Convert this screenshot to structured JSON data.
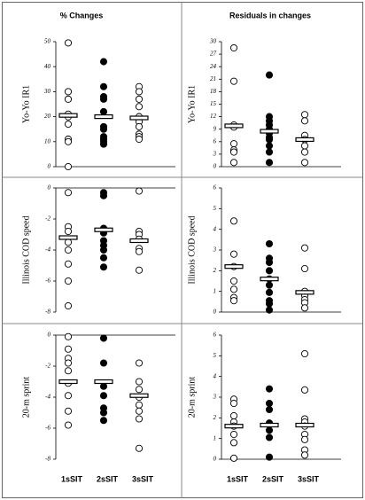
{
  "column_titles": [
    "% Changes",
    "Residuals in changes"
  ],
  "categories": [
    "1sSIT",
    "2sSIT",
    "3sSIT"
  ],
  "chart_data": [
    {
      "type": "strip",
      "ylabel": "Yo-Yo IR1",
      "ylim": [
        0,
        50
      ],
      "yticks": [
        0,
        10,
        20,
        30,
        40,
        50
      ],
      "colors": [
        "#ffffff",
        "#000000",
        "#ffffff"
      ],
      "groups": [
        {
          "values": [
            49.5,
            30,
            27,
            21,
            20,
            17,
            11,
            10,
            0
          ],
          "mean": 20.5
        },
        {
          "values": [
            42,
            32,
            28,
            27,
            22,
            16,
            15,
            12,
            11,
            10,
            9
          ],
          "mean": 20
        },
        {
          "values": [
            32,
            30,
            27,
            24,
            20,
            18,
            16,
            13,
            12,
            11
          ],
          "mean": 19.5
        }
      ]
    },
    {
      "type": "strip",
      "ylabel": "Yo-Yo IR1",
      "ylim": [
        0,
        30
      ],
      "yticks": [
        0,
        3,
        6,
        9,
        12,
        15,
        18,
        21,
        24,
        27,
        30
      ],
      "colors": [
        "#ffffff",
        "#000000",
        "#ffffff"
      ],
      "groups": [
        {
          "values": [
            28.5,
            20.5,
            10,
            9.5,
            5.5,
            4,
            3.5,
            1
          ],
          "mean": 9.8
        },
        {
          "values": [
            22,
            12,
            11,
            10,
            9,
            8,
            7,
            6.5,
            5,
            3.5,
            1
          ],
          "mean": 8.5
        },
        {
          "values": [
            12.5,
            11,
            7.5,
            6.5,
            5,
            3.5,
            1
          ],
          "mean": 6.5
        }
      ]
    },
    {
      "type": "strip",
      "ylabel": "Illinois COD speed",
      "ylim": [
        -8,
        0
      ],
      "yticks": [
        -8,
        -6,
        -4,
        -2,
        0
      ],
      "colors": [
        "#ffffff",
        "#000000",
        "#ffffff"
      ],
      "groups": [
        {
          "values": [
            -0.3,
            -2.5,
            -2.8,
            -3.5,
            -4,
            -4.9,
            -6,
            -7.6
          ],
          "mean": -3.2
        },
        {
          "values": [
            -0.3,
            -0.5,
            -2.6,
            -2.9,
            -3.4,
            -3.7,
            -4,
            -4.5,
            -5.1
          ],
          "mean": -2.7
        },
        {
          "values": [
            -0.2,
            -2.8,
            -3,
            -3.3,
            -3.9,
            -4.1,
            -5.3
          ],
          "mean": -3.4
        }
      ]
    },
    {
      "type": "strip",
      "ylabel": "Illinois COD speed",
      "ylim": [
        0,
        6
      ],
      "yticks": [
        0,
        1,
        2,
        3,
        4,
        5,
        6
      ],
      "colors": [
        "#ffffff",
        "#000000",
        "#ffffff"
      ],
      "groups": [
        {
          "values": [
            4.4,
            2.8,
            2.2,
            1.5,
            1.1,
            0.7,
            0.55
          ],
          "mean": 2.2
        },
        {
          "values": [
            3.3,
            2.6,
            2.4,
            2.0,
            1.6,
            1.3,
            0.95,
            0.55,
            0.4,
            0.1
          ],
          "mean": 1.6
        },
        {
          "values": [
            3.1,
            2.1,
            1.0,
            0.8,
            0.6,
            0.45,
            0.2
          ],
          "mean": 0.95
        }
      ]
    },
    {
      "type": "strip",
      "ylabel": "20-m sprint",
      "ylim": [
        -8,
        0
      ],
      "yticks": [
        -8,
        -6,
        -4,
        -2,
        0
      ],
      "colors": [
        "#ffffff",
        "#000000",
        "#ffffff"
      ],
      "groups": [
        {
          "values": [
            -0.1,
            -0.9,
            -1.5,
            -1.8,
            -2.3,
            -3.1,
            -3.9,
            -4.9,
            -5.8
          ],
          "mean": -3
        },
        {
          "values": [
            -0.2,
            -1.8,
            -3.3,
            -3.9,
            -4.7,
            -5.0,
            -5.5
          ],
          "mean": -3
        },
        {
          "values": [
            -1.8,
            -3,
            -3.5,
            -4,
            -4.5,
            -4.9,
            -5.4,
            -7.3
          ],
          "mean": -3.9
        }
      ]
    },
    {
      "type": "strip",
      "ylabel": "20-m sprint",
      "ylim": [
        0,
        6
      ],
      "yticks": [
        0,
        1,
        2,
        3,
        4,
        5,
        6
      ],
      "colors": [
        "#ffffff",
        "#000000",
        "#ffffff"
      ],
      "groups": [
        {
          "values": [
            2.9,
            2.7,
            2.1,
            1.8,
            1.6,
            1.2,
            0.8,
            0.05
          ],
          "mean": 1.6
        },
        {
          "values": [
            3.4,
            2.7,
            2.4,
            1.75,
            1.4,
            1.05,
            0.1
          ],
          "mean": 1.65
        },
        {
          "values": [
            5.1,
            3.35,
            1.95,
            1.8,
            1.6,
            1.2,
            0.95,
            0.45,
            0.2
          ],
          "mean": 1.65
        }
      ]
    }
  ]
}
